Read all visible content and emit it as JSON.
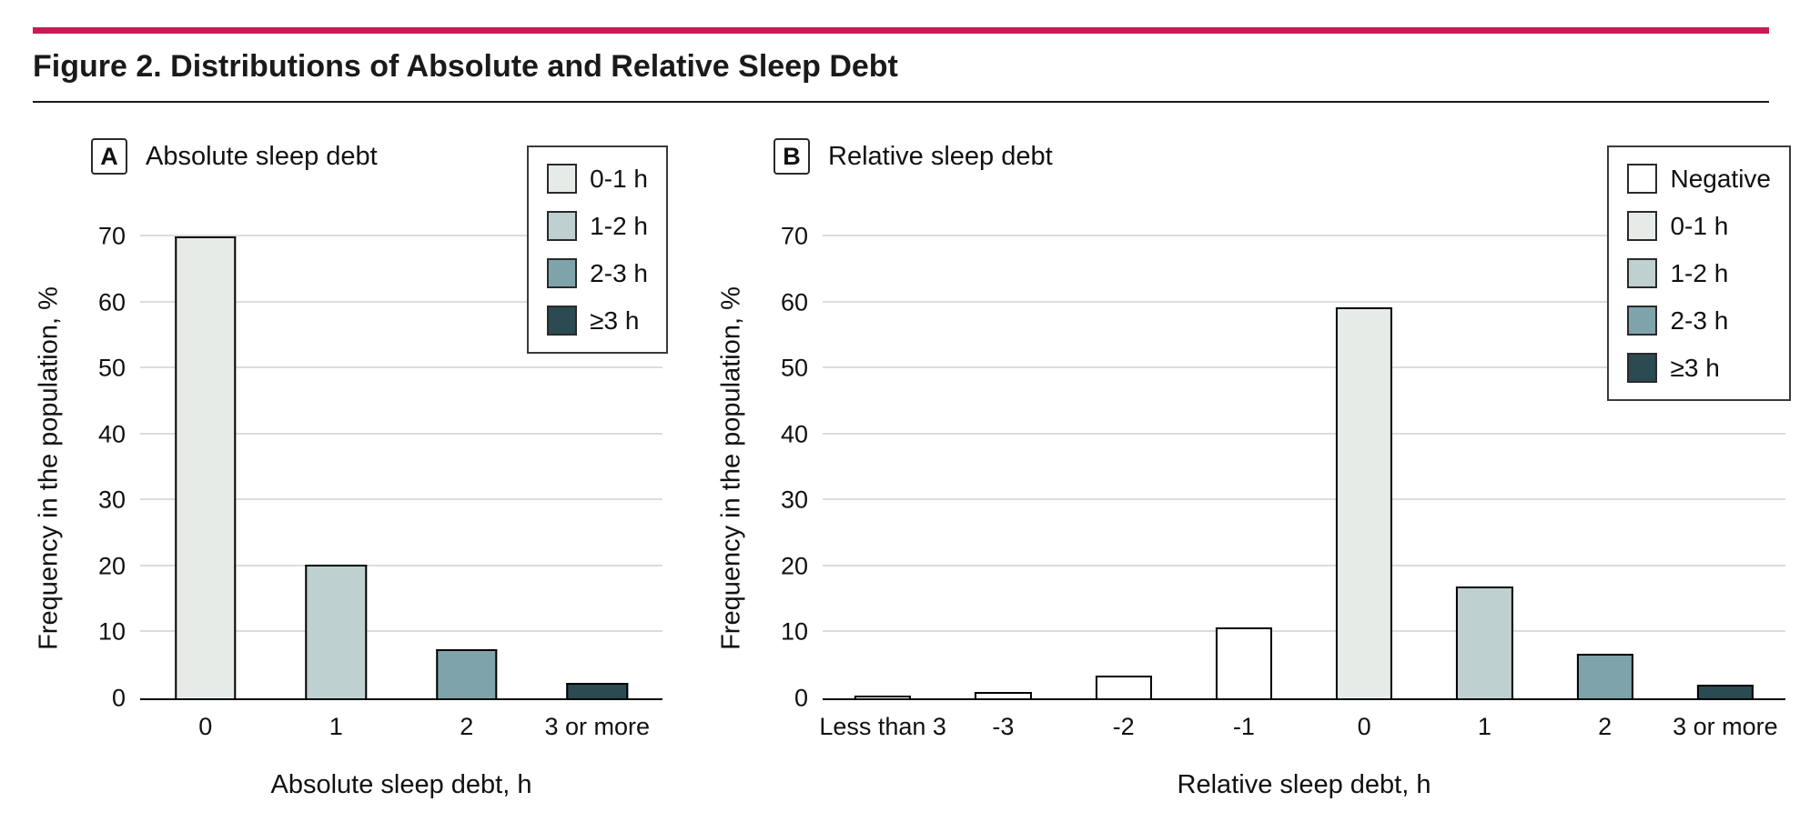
{
  "page": {
    "title": "Figure 2. Distributions of Absolute and Relative Sleep Debt",
    "accent_color": "#c41d56",
    "rule_color": "#1a1a1a",
    "background_color": "#ffffff"
  },
  "palette": {
    "negative": "#ffffff",
    "h0_1": "#e7ebe8",
    "h1_2": "#bed0cf",
    "h2_3": "#7fa3aa",
    "h3_plus": "#2b4a52",
    "bar_border": "#000000",
    "grid": "#dcdcdc"
  },
  "chart_data": [
    {
      "type": "bar",
      "panel": "A",
      "title": "Absolute sleep debt",
      "xlabel": "Absolute sleep debt, h",
      "ylabel": "Frequency in the population, %",
      "ylim": [
        0,
        70
      ],
      "yticks": [
        0,
        10,
        20,
        30,
        40,
        50,
        60,
        70
      ],
      "grid": true,
      "legend_position": "top-right",
      "categories": [
        "0",
        "1",
        "2",
        "3 or more"
      ],
      "values": [
        70,
        20.3,
        7.5,
        2.4
      ],
      "bar_colors": [
        "#e7ebe8",
        "#bed0cf",
        "#7fa3aa",
        "#2b4a52"
      ],
      "legend": [
        {
          "label": "0-1 h",
          "color": "#e7ebe8"
        },
        {
          "label": "1-2 h",
          "color": "#bed0cf"
        },
        {
          "label": "2-3 h",
          "color": "#7fa3aa"
        },
        {
          "label": "≥3 h",
          "color": "#2b4a52"
        }
      ]
    },
    {
      "type": "bar",
      "panel": "B",
      "title": "Relative sleep debt",
      "xlabel": "Relative sleep debt, h",
      "ylabel": "Frequency in the population, %",
      "ylim": [
        0,
        70
      ],
      "yticks": [
        0,
        10,
        20,
        30,
        40,
        50,
        60,
        70
      ],
      "grid": true,
      "legend_position": "top-right",
      "categories": [
        "Less than 3",
        "-3",
        "-2",
        "-1",
        "0",
        "1",
        "2",
        "3 or more"
      ],
      "values": [
        0.4,
        1.0,
        3.4,
        10.7,
        59.3,
        16.9,
        6.8,
        2.1
      ],
      "bar_colors": [
        "#ffffff",
        "#ffffff",
        "#ffffff",
        "#ffffff",
        "#e7ebe8",
        "#bed0cf",
        "#7fa3aa",
        "#2b4a52"
      ],
      "legend": [
        {
          "label": "Negative",
          "color": "#ffffff"
        },
        {
          "label": "0-1 h",
          "color": "#e7ebe8"
        },
        {
          "label": "1-2 h",
          "color": "#bed0cf"
        },
        {
          "label": "2-3 h",
          "color": "#7fa3aa"
        },
        {
          "label": "≥3 h",
          "color": "#2b4a52"
        }
      ]
    }
  ]
}
